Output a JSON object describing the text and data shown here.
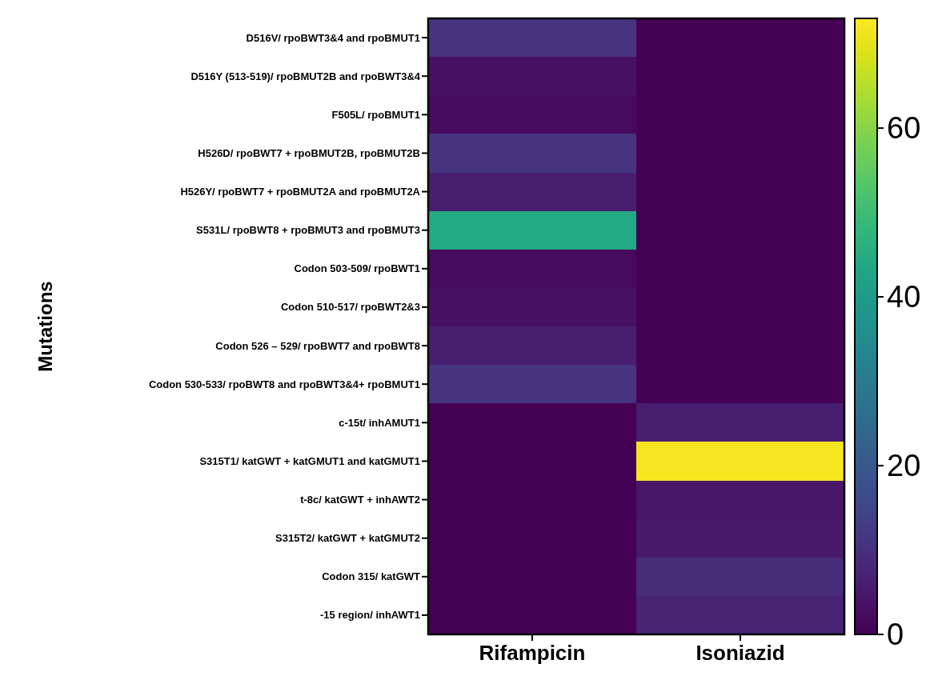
{
  "chart_data": {
    "type": "heatmap",
    "ylabel": "Mutations",
    "categories": [
      "Rifampicin",
      "Isoniazid"
    ],
    "y_categories": [
      "D516V/ rpoBWT3&4 and rpoBMUT1",
      "D516Y (513-519)/ rpoBMUT2B and rpoBWT3&4",
      "F505L/ rpoBMUT1",
      "H526D/ rpoBWT7 + rpoBMUT2B, rpoBMUT2B",
      "H526Y/ rpoBWT7 + rpoBMUT2A and rpoBMUT2A",
      "S531L/ rpoBWT8 + rpoBMUT3 and rpoBMUT3",
      "Codon 503-509/ rpoBWT1",
      "Codon 510-517/ rpoBWT2&3",
      "Codon 526 – 529/ rpoBWT7 and rpoBWT8",
      "Codon 530-533/ rpoBWT8 and rpoBWT3&4+ rpoBMUT1",
      "c-15t/ inhAMUT1",
      "S315T1/ katGWT + katGMUT1 and katGMUT1",
      "t-8c/ katGWT + inhAWT2",
      "S315T2/ katGWT + katGMUT2",
      "Codon 315/ katGWT",
      "-15 region/ inhAWT1"
    ],
    "cells": [
      [
        11,
        0
      ],
      [
        3,
        0
      ],
      [
        2,
        0
      ],
      [
        11,
        0
      ],
      [
        6,
        0
      ],
      [
        44,
        0
      ],
      [
        2,
        0
      ],
      [
        3,
        0
      ],
      [
        6,
        0
      ],
      [
        11,
        0
      ],
      [
        0,
        6
      ],
      [
        0,
        72
      ],
      [
        0,
        4
      ],
      [
        0,
        5
      ],
      [
        0,
        9
      ],
      [
        0,
        7
      ]
    ],
    "clim": [
      0,
      73
    ],
    "cticks": [
      0,
      20,
      40,
      60
    ]
  }
}
